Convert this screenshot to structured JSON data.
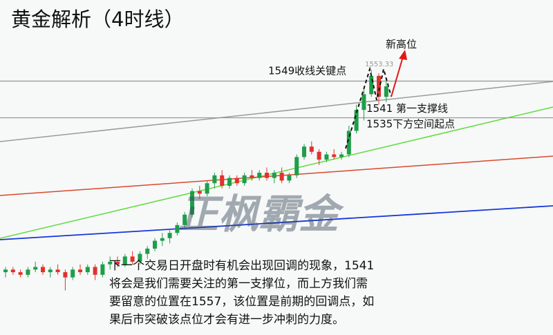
{
  "chart_data": {
    "type": "candlestick",
    "title": "黄金解析（4时线）",
    "ylim": [
      1452,
      1580
    ],
    "open": [
      1476,
      1477,
      1476,
      1475,
      1477,
      1478,
      1476,
      1477,
      1476,
      1474,
      1477,
      1476,
      1478,
      1475,
      1479,
      1480,
      1479,
      1482,
      1480,
      1483,
      1485,
      1488,
      1489,
      1491,
      1494,
      1498,
      1507,
      1506,
      1510,
      1513,
      1509,
      1512,
      1510,
      1513,
      1512,
      1514,
      1512,
      1514,
      1511,
      1513,
      1520,
      1524,
      1522,
      1519,
      1521,
      1520,
      1521,
      1530,
      1538,
      1544,
      1551,
      1543
    ],
    "high": [
      1478,
      1478,
      1477,
      1478,
      1480,
      1479,
      1478,
      1479,
      1477,
      1478,
      1479,
      1479,
      1479,
      1480,
      1482,
      1482,
      1483,
      1484,
      1484,
      1486,
      1489,
      1491,
      1492,
      1495,
      1499,
      1508,
      1509,
      1511,
      1514,
      1515,
      1513,
      1513,
      1514,
      1515,
      1515,
      1516,
      1515,
      1516,
      1514,
      1521,
      1525,
      1526,
      1523,
      1522,
      1523,
      1522,
      1532,
      1540,
      1546,
      1553.33,
      1552,
      1550
    ],
    "low": [
      1474,
      1475,
      1474,
      1474,
      1476,
      1475,
      1474,
      1475,
      1469,
      1473,
      1475,
      1475,
      1473,
      1474,
      1477,
      1478,
      1478,
      1479,
      1479,
      1481,
      1484,
      1486,
      1487,
      1490,
      1493,
      1497,
      1504,
      1505,
      1508,
      1508,
      1508,
      1509,
      1509,
      1511,
      1511,
      1511,
      1510,
      1510,
      1510,
      1512,
      1519,
      1521,
      1517,
      1518,
      1519,
      1519,
      1520,
      1529,
      1534,
      1543,
      1540,
      1541
    ],
    "close": [
      1477,
      1476,
      1475,
      1477,
      1478,
      1476,
      1477,
      1476,
      1474,
      1477,
      1476,
      1478,
      1475,
      1479,
      1480,
      1479,
      1482,
      1480,
      1483,
      1485,
      1488,
      1489,
      1491,
      1494,
      1498,
      1507,
      1506,
      1510,
      1513,
      1509,
      1512,
      1510,
      1513,
      1512,
      1514,
      1512,
      1514,
      1511,
      1513,
      1520,
      1524,
      1522,
      1519,
      1521,
      1520,
      1521,
      1530,
      1538,
      1544,
      1551,
      1543,
      1547
    ],
    "peak": 1553.33,
    "annotations": [
      {
        "value": 1549,
        "label": "1549收线关键点"
      },
      {
        "value": 1541,
        "label": "1541 第一支撑线"
      },
      {
        "value": 1535,
        "label": "1535下方空间起点"
      }
    ],
    "new_high_label": "新高位",
    "watermark": "正枫霸金",
    "paragraph": [
      "下一个交易日开盘时有机会出现回调的现象，1541",
      "将会是我们需要关注的第一支撑位，而上方我们需",
      "要留意的位置在1557，该位置是前期的回调点，如",
      "果后市突破该点位才会有进一步冲刺的力度。"
    ]
  }
}
